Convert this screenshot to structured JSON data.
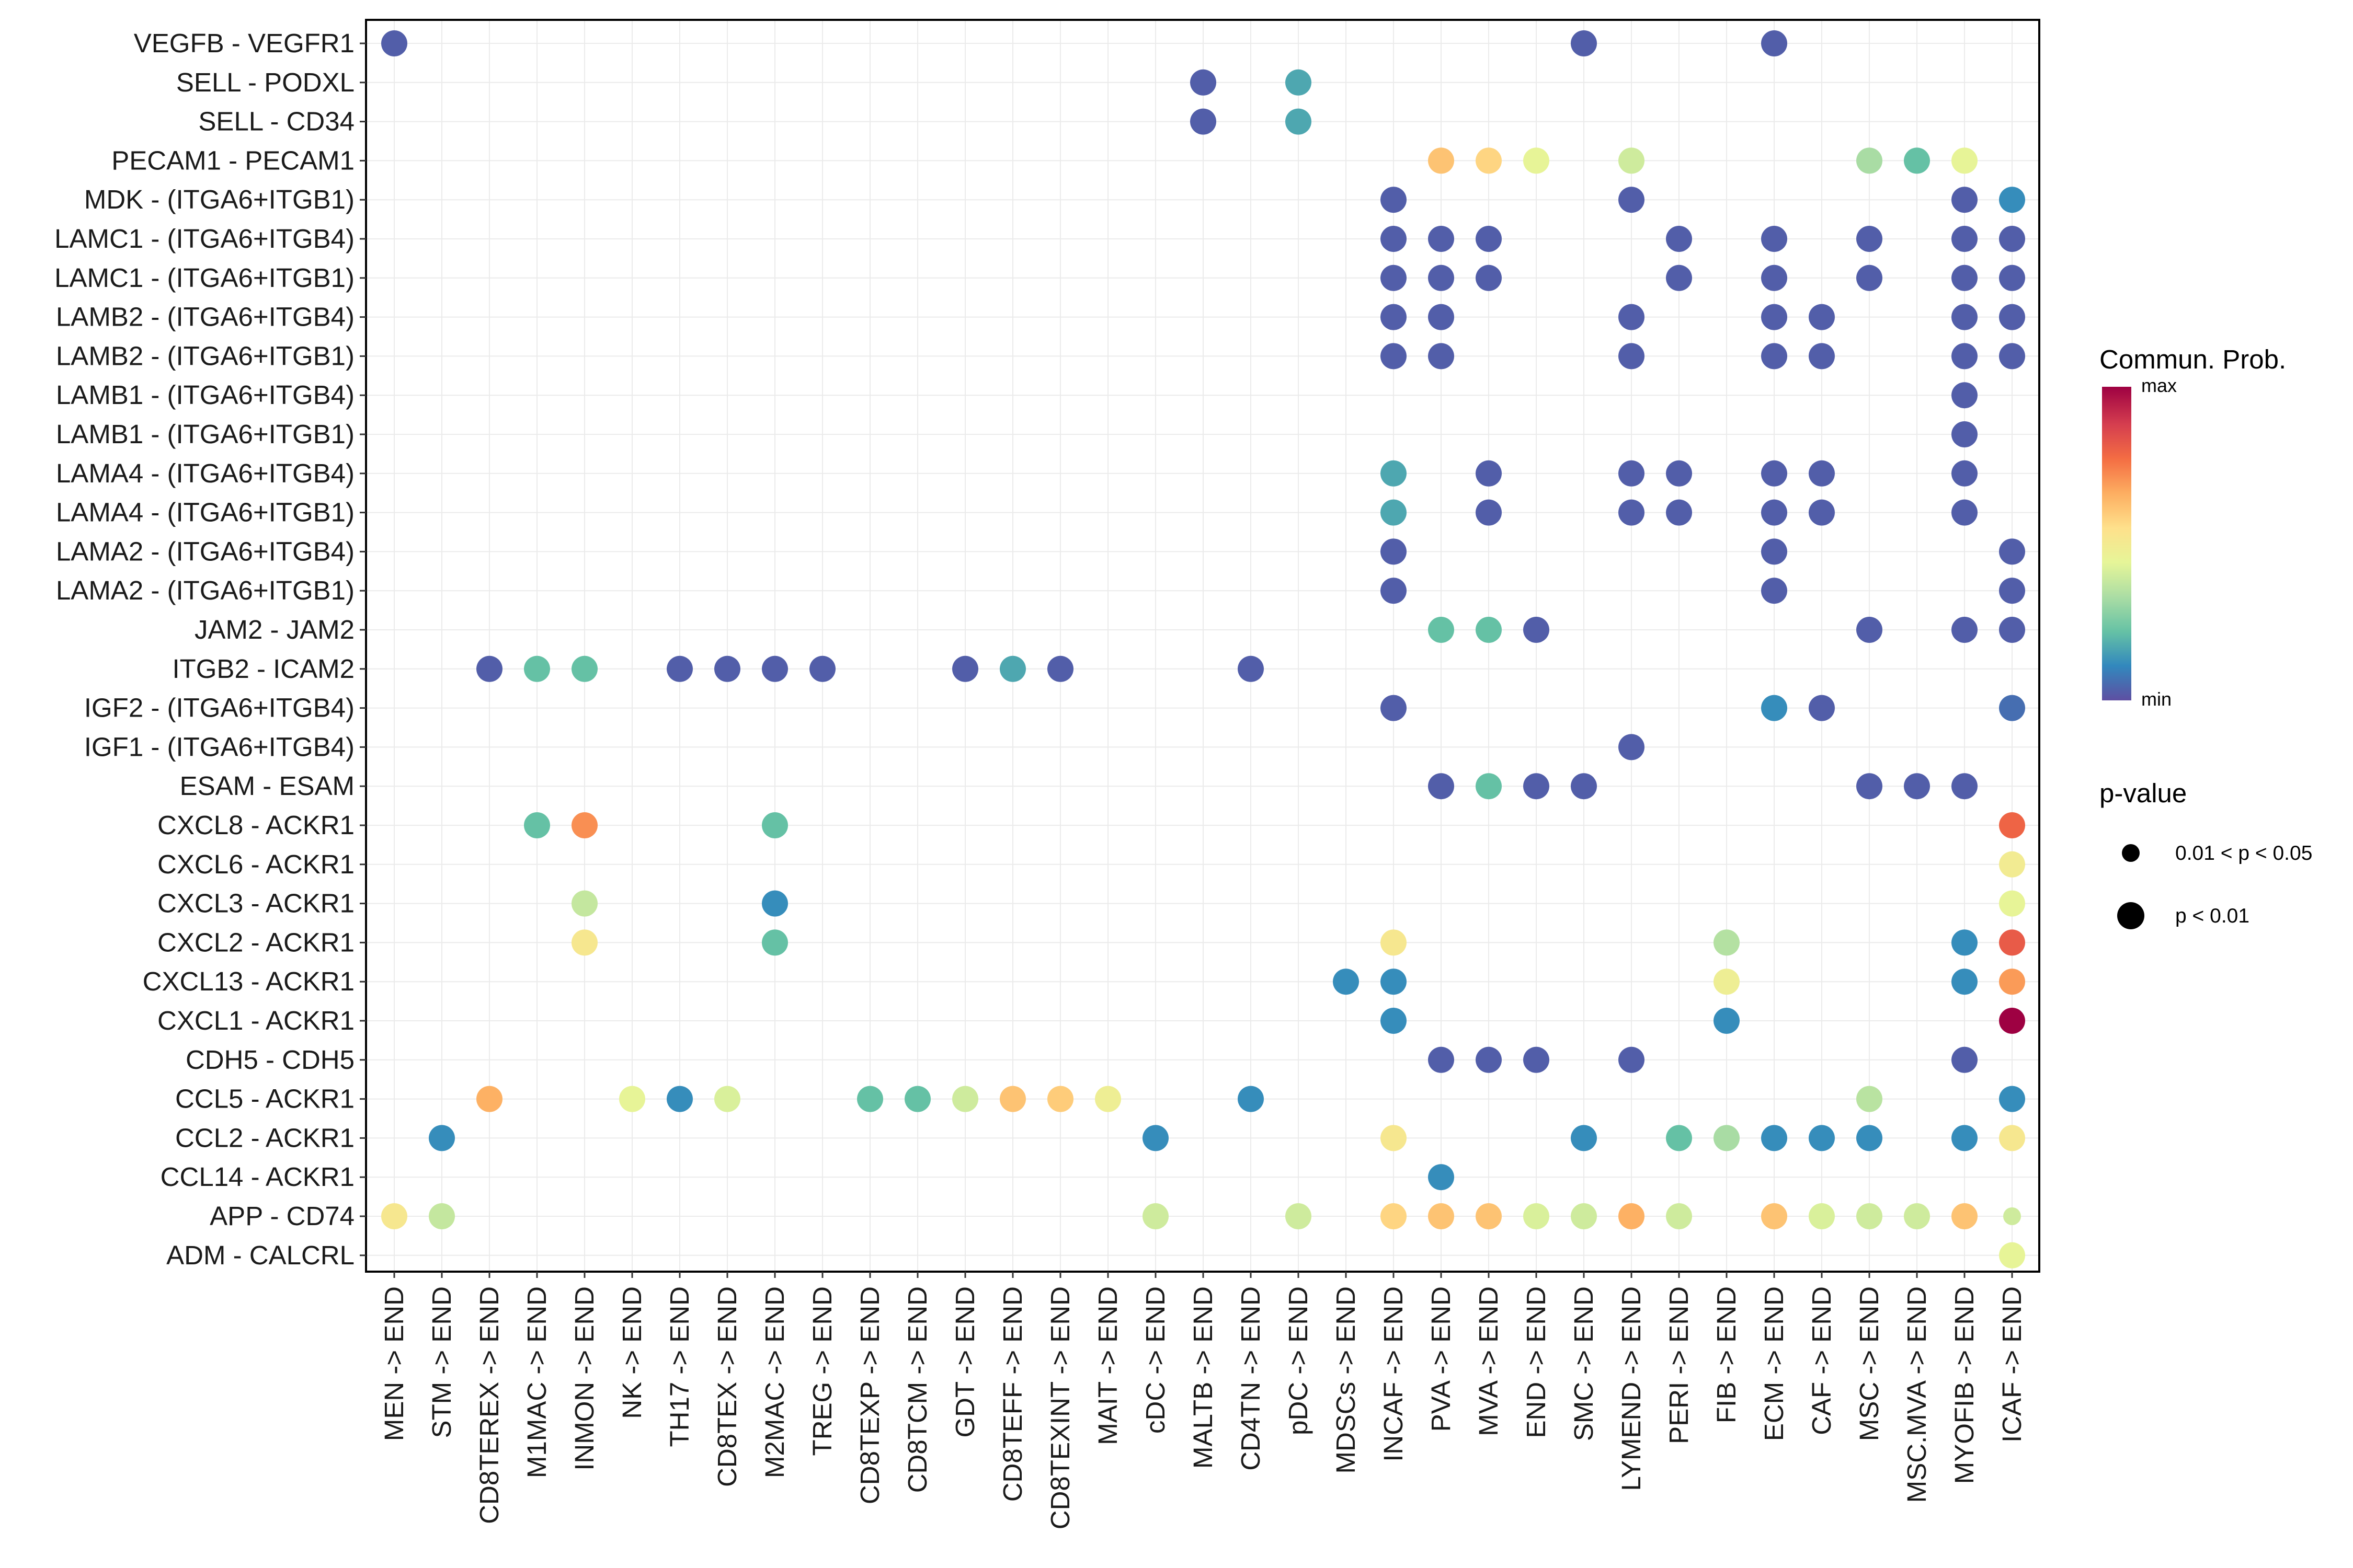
{
  "chart_data": {
    "type": "scatter",
    "subtype": "dot-plot",
    "title": "",
    "xlabel": "",
    "ylabel": "",
    "x_categories": [
      "MEN -> END",
      "STM -> END",
      "CD8TEREX -> END",
      "M1MAC -> END",
      "INMON -> END",
      "NK -> END",
      "TH17 -> END",
      "CD8TEX -> END",
      "M2MAC -> END",
      "TREG -> END",
      "CD8TEXP -> END",
      "CD8TCM -> END",
      "GDT -> END",
      "CD8TEFF -> END",
      "CD8TEXINT -> END",
      "MAIT -> END",
      "cDC -> END",
      "MALTB -> END",
      "CD4TN -> END",
      "pDC -> END",
      "MDSCs -> END",
      "INCAF -> END",
      "PVA -> END",
      "MVA -> END",
      "END -> END",
      "SMC -> END",
      "LYMEND -> END",
      "PERI -> END",
      "FIB -> END",
      "ECM -> END",
      "CAF -> END",
      "MSC -> END",
      "MSC.MVA -> END",
      "MYOFIB -> END",
      "ICAF -> END"
    ],
    "y_categories": [
      "VEGFB - VEGFR1",
      "SELL - PODXL",
      "SELL - CD34",
      "PECAM1 - PECAM1",
      "MDK - (ITGA6+ITGB1)",
      "LAMC1 - (ITGA6+ITGB4)",
      "LAMC1 - (ITGA6+ITGB1)",
      "LAMB2 - (ITGA6+ITGB4)",
      "LAMB2 - (ITGA6+ITGB1)",
      "LAMB1 - (ITGA6+ITGB4)",
      "LAMB1 - (ITGA6+ITGB1)",
      "LAMA4 - (ITGA6+ITGB4)",
      "LAMA4 - (ITGA6+ITGB1)",
      "LAMA2 - (ITGA6+ITGB4)",
      "LAMA2 - (ITGA6+ITGB1)",
      "JAM2 - JAM2",
      "ITGB2 - ICAM2",
      "IGF2 - (ITGA6+ITGB4)",
      "IGF1 - (ITGA6+ITGB4)",
      "ESAM - ESAM",
      "CXCL8 - ACKR1",
      "CXCL6 - ACKR1",
      "CXCL3 - ACKR1",
      "CXCL2 - ACKR1",
      "CXCL13 - ACKR1",
      "CXCL1 - ACKR1",
      "CDH5 - CDH5",
      "CCL5 - ACKR1",
      "CCL2 - ACKR1",
      "CCL14 - ACKR1",
      "APP - CD74",
      "ADM - CALCRL"
    ],
    "points_note": "each point: [x_index, y_index, communication probability normalized 0(min)-1(max), p-value class 1 = p<0.01, 0 = 0.01<p<0.05]",
    "points": [
      [
        0,
        0,
        0.03,
        1
      ],
      [
        25,
        0,
        0.03,
        1
      ],
      [
        29,
        0,
        0.03,
        1
      ],
      [
        17,
        1,
        0.03,
        1
      ],
      [
        19,
        1,
        0.17,
        1
      ],
      [
        17,
        2,
        0.03,
        1
      ],
      [
        19,
        2,
        0.17,
        1
      ],
      [
        22,
        3,
        0.62,
        1
      ],
      [
        23,
        3,
        0.58,
        1
      ],
      [
        24,
        3,
        0.45,
        1
      ],
      [
        26,
        3,
        0.4,
        1
      ],
      [
        31,
        3,
        0.33,
        1
      ],
      [
        32,
        3,
        0.22,
        1
      ],
      [
        33,
        3,
        0.45,
        1
      ],
      [
        21,
        4,
        0.03,
        1
      ],
      [
        26,
        4,
        0.03,
        1
      ],
      [
        33,
        4,
        0.03,
        1
      ],
      [
        34,
        4,
        0.12,
        1
      ],
      [
        21,
        5,
        0.03,
        1
      ],
      [
        22,
        5,
        0.03,
        1
      ],
      [
        23,
        5,
        0.03,
        1
      ],
      [
        27,
        5,
        0.03,
        1
      ],
      [
        29,
        5,
        0.03,
        1
      ],
      [
        31,
        5,
        0.03,
        1
      ],
      [
        33,
        5,
        0.03,
        1
      ],
      [
        34,
        5,
        0.03,
        1
      ],
      [
        21,
        6,
        0.03,
        1
      ],
      [
        22,
        6,
        0.03,
        1
      ],
      [
        23,
        6,
        0.03,
        1
      ],
      [
        27,
        6,
        0.03,
        1
      ],
      [
        29,
        6,
        0.03,
        1
      ],
      [
        31,
        6,
        0.03,
        1
      ],
      [
        33,
        6,
        0.03,
        1
      ],
      [
        34,
        6,
        0.03,
        1
      ],
      [
        21,
        7,
        0.03,
        1
      ],
      [
        22,
        7,
        0.03,
        1
      ],
      [
        26,
        7,
        0.03,
        1
      ],
      [
        29,
        7,
        0.03,
        1
      ],
      [
        30,
        7,
        0.03,
        1
      ],
      [
        33,
        7,
        0.03,
        1
      ],
      [
        34,
        7,
        0.03,
        1
      ],
      [
        21,
        8,
        0.03,
        1
      ],
      [
        22,
        8,
        0.03,
        1
      ],
      [
        26,
        8,
        0.03,
        1
      ],
      [
        29,
        8,
        0.03,
        1
      ],
      [
        30,
        8,
        0.03,
        1
      ],
      [
        33,
        8,
        0.03,
        1
      ],
      [
        34,
        8,
        0.03,
        1
      ],
      [
        33,
        9,
        0.03,
        1
      ],
      [
        33,
        10,
        0.03,
        1
      ],
      [
        21,
        11,
        0.17,
        1
      ],
      [
        23,
        11,
        0.03,
        1
      ],
      [
        26,
        11,
        0.03,
        1
      ],
      [
        27,
        11,
        0.03,
        1
      ],
      [
        29,
        11,
        0.03,
        1
      ],
      [
        30,
        11,
        0.03,
        1
      ],
      [
        33,
        11,
        0.03,
        1
      ],
      [
        21,
        12,
        0.17,
        1
      ],
      [
        23,
        12,
        0.03,
        1
      ],
      [
        26,
        12,
        0.03,
        1
      ],
      [
        27,
        12,
        0.03,
        1
      ],
      [
        29,
        12,
        0.03,
        1
      ],
      [
        30,
        12,
        0.03,
        1
      ],
      [
        33,
        12,
        0.03,
        1
      ],
      [
        21,
        13,
        0.03,
        1
      ],
      [
        29,
        13,
        0.03,
        1
      ],
      [
        34,
        13,
        0.03,
        1
      ],
      [
        21,
        14,
        0.03,
        1
      ],
      [
        29,
        14,
        0.03,
        1
      ],
      [
        34,
        14,
        0.03,
        1
      ],
      [
        22,
        15,
        0.22,
        1
      ],
      [
        23,
        15,
        0.22,
        1
      ],
      [
        24,
        15,
        0.03,
        1
      ],
      [
        31,
        15,
        0.03,
        1
      ],
      [
        33,
        15,
        0.03,
        1
      ],
      [
        34,
        15,
        0.03,
        1
      ],
      [
        2,
        16,
        0.03,
        1
      ],
      [
        3,
        16,
        0.22,
        1
      ],
      [
        4,
        16,
        0.22,
        1
      ],
      [
        6,
        16,
        0.03,
        1
      ],
      [
        7,
        16,
        0.03,
        1
      ],
      [
        8,
        16,
        0.03,
        1
      ],
      [
        9,
        16,
        0.03,
        1
      ],
      [
        12,
        16,
        0.03,
        1
      ],
      [
        13,
        16,
        0.17,
        1
      ],
      [
        14,
        16,
        0.03,
        1
      ],
      [
        18,
        16,
        0.03,
        1
      ],
      [
        21,
        17,
        0.03,
        1
      ],
      [
        29,
        17,
        0.12,
        1
      ],
      [
        30,
        17,
        0.03,
        1
      ],
      [
        34,
        17,
        0.06,
        1
      ],
      [
        26,
        18,
        0.03,
        1
      ],
      [
        22,
        19,
        0.03,
        1
      ],
      [
        23,
        19,
        0.22,
        1
      ],
      [
        24,
        19,
        0.03,
        1
      ],
      [
        25,
        19,
        0.03,
        1
      ],
      [
        31,
        19,
        0.03,
        1
      ],
      [
        32,
        19,
        0.03,
        1
      ],
      [
        33,
        19,
        0.03,
        1
      ],
      [
        3,
        20,
        0.22,
        1
      ],
      [
        4,
        20,
        0.72,
        1
      ],
      [
        8,
        20,
        0.22,
        1
      ],
      [
        34,
        20,
        0.8,
        1
      ],
      [
        34,
        21,
        0.5,
        1
      ],
      [
        4,
        22,
        0.38,
        1
      ],
      [
        8,
        22,
        0.12,
        1
      ],
      [
        34,
        22,
        0.45,
        1
      ],
      [
        4,
        23,
        0.52,
        1
      ],
      [
        8,
        23,
        0.22,
        1
      ],
      [
        21,
        23,
        0.52,
        1
      ],
      [
        28,
        23,
        0.35,
        1
      ],
      [
        33,
        23,
        0.12,
        1
      ],
      [
        34,
        23,
        0.82,
        1
      ],
      [
        20,
        24,
        0.12,
        1
      ],
      [
        21,
        24,
        0.12,
        1
      ],
      [
        28,
        24,
        0.48,
        1
      ],
      [
        33,
        24,
        0.12,
        1
      ],
      [
        34,
        24,
        0.7,
        1
      ],
      [
        21,
        25,
        0.12,
        1
      ],
      [
        28,
        25,
        0.12,
        1
      ],
      [
        34,
        25,
        1.0,
        1
      ],
      [
        22,
        26,
        0.03,
        1
      ],
      [
        23,
        26,
        0.03,
        1
      ],
      [
        24,
        26,
        0.03,
        1
      ],
      [
        26,
        26,
        0.03,
        1
      ],
      [
        33,
        26,
        0.03,
        1
      ],
      [
        2,
        27,
        0.66,
        1
      ],
      [
        5,
        27,
        0.45,
        1
      ],
      [
        6,
        27,
        0.12,
        1
      ],
      [
        7,
        27,
        0.42,
        1
      ],
      [
        10,
        27,
        0.22,
        1
      ],
      [
        11,
        27,
        0.22,
        1
      ],
      [
        12,
        27,
        0.4,
        1
      ],
      [
        13,
        27,
        0.62,
        1
      ],
      [
        14,
        27,
        0.6,
        1
      ],
      [
        15,
        27,
        0.48,
        1
      ],
      [
        18,
        27,
        0.12,
        1
      ],
      [
        31,
        27,
        0.36,
        1
      ],
      [
        34,
        27,
        0.12,
        1
      ],
      [
        1,
        28,
        0.12,
        1
      ],
      [
        16,
        28,
        0.12,
        1
      ],
      [
        21,
        28,
        0.52,
        1
      ],
      [
        25,
        28,
        0.12,
        1
      ],
      [
        27,
        28,
        0.22,
        1
      ],
      [
        28,
        28,
        0.33,
        1
      ],
      [
        29,
        28,
        0.12,
        1
      ],
      [
        30,
        28,
        0.12,
        1
      ],
      [
        31,
        28,
        0.12,
        1
      ],
      [
        33,
        28,
        0.12,
        1
      ],
      [
        34,
        28,
        0.52,
        1
      ],
      [
        22,
        29,
        0.12,
        1
      ],
      [
        0,
        30,
        0.52,
        1
      ],
      [
        1,
        30,
        0.38,
        1
      ],
      [
        16,
        30,
        0.4,
        1
      ],
      [
        19,
        30,
        0.4,
        1
      ],
      [
        21,
        30,
        0.58,
        1
      ],
      [
        22,
        30,
        0.62,
        1
      ],
      [
        23,
        30,
        0.62,
        1
      ],
      [
        24,
        30,
        0.42,
        1
      ],
      [
        25,
        30,
        0.4,
        1
      ],
      [
        26,
        30,
        0.66,
        1
      ],
      [
        27,
        30,
        0.4,
        1
      ],
      [
        29,
        30,
        0.62,
        1
      ],
      [
        30,
        30,
        0.42,
        1
      ],
      [
        31,
        30,
        0.4,
        1
      ],
      [
        32,
        30,
        0.4,
        1
      ],
      [
        33,
        30,
        0.62,
        1
      ],
      [
        34,
        30,
        0.4,
        0
      ],
      [
        34,
        31,
        0.45,
        1
      ]
    ],
    "color_legend": {
      "title": "Commun. Prob.",
      "max_label": "max",
      "min_label": "min"
    },
    "size_legend": {
      "title": "p-value",
      "entries": [
        "0.01 < p < 0.05",
        "p < 0.01"
      ]
    },
    "palette": [
      "#5E4FA2",
      "#3288BD",
      "#66C2A5",
      "#ABDDA4",
      "#E6F598",
      "#FEE08B",
      "#FDAE61",
      "#F46D43",
      "#D53E4F",
      "#9E0142"
    ],
    "grid": true,
    "legend_position": "right"
  }
}
